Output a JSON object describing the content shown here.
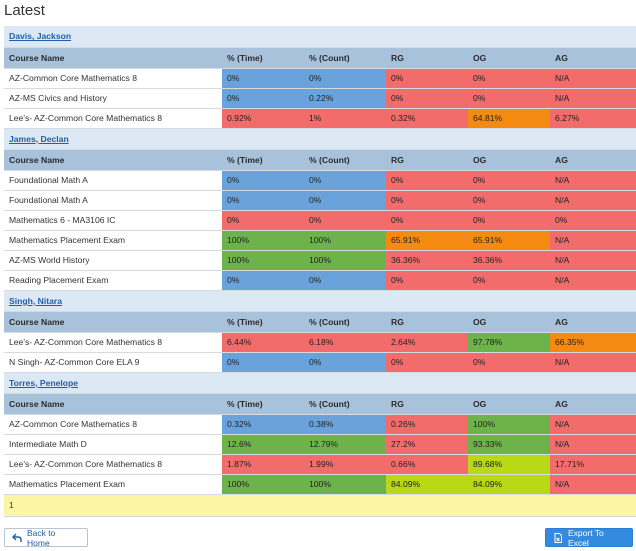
{
  "page": {
    "title": "Latest"
  },
  "columns": [
    "Course Name",
    "% (Time)",
    "% (Count)",
    "RG",
    "OG",
    "AG"
  ],
  "colors": {
    "blue": "#6aa3dc",
    "red": "#f36c6c",
    "green": "#6db24a",
    "orange": "#f48a12",
    "lime": "#b9d815"
  },
  "students": [
    {
      "name": "Davis, Jackson",
      "rows": [
        {
          "course": "AZ-Common Core Mathematics 8",
          "cells": [
            {
              "v": "0%",
              "c": "blue"
            },
            {
              "v": "0%",
              "c": "blue"
            },
            {
              "v": "0%",
              "c": "red"
            },
            {
              "v": "0%",
              "c": "red"
            },
            {
              "v": "N/A",
              "c": "red"
            }
          ]
        },
        {
          "course": "AZ-MS Civics and History",
          "cells": [
            {
              "v": "0%",
              "c": "blue"
            },
            {
              "v": "0.22%",
              "c": "blue"
            },
            {
              "v": "0%",
              "c": "red"
            },
            {
              "v": "0%",
              "c": "red"
            },
            {
              "v": "N/A",
              "c": "red"
            }
          ]
        },
        {
          "course": "Lee's- AZ-Common Core Mathematics 8",
          "cells": [
            {
              "v": "0.92%",
              "c": "red"
            },
            {
              "v": "1%",
              "c": "red"
            },
            {
              "v": "0.32%",
              "c": "red"
            },
            {
              "v": "64.81%",
              "c": "orange"
            },
            {
              "v": "6.27%",
              "c": "red"
            }
          ]
        }
      ]
    },
    {
      "name": "James, Declan",
      "rows": [
        {
          "course": "Foundational Math A",
          "cells": [
            {
              "v": "0%",
              "c": "blue"
            },
            {
              "v": "0%",
              "c": "blue"
            },
            {
              "v": "0%",
              "c": "red"
            },
            {
              "v": "0%",
              "c": "red"
            },
            {
              "v": "N/A",
              "c": "red"
            }
          ]
        },
        {
          "course": "Foundational Math A",
          "cells": [
            {
              "v": "0%",
              "c": "blue"
            },
            {
              "v": "0%",
              "c": "blue"
            },
            {
              "v": "0%",
              "c": "red"
            },
            {
              "v": "0%",
              "c": "red"
            },
            {
              "v": "N/A",
              "c": "red"
            }
          ]
        },
        {
          "course": "Mathematics 6 - MA3106 IC",
          "cells": [
            {
              "v": "0%",
              "c": "red"
            },
            {
              "v": "0%",
              "c": "red"
            },
            {
              "v": "0%",
              "c": "red"
            },
            {
              "v": "0%",
              "c": "red"
            },
            {
              "v": "0%",
              "c": "red"
            }
          ]
        },
        {
          "course": "Mathematics Placement Exam",
          "cells": [
            {
              "v": "100%",
              "c": "green"
            },
            {
              "v": "100%",
              "c": "green"
            },
            {
              "v": "65.91%",
              "c": "orange"
            },
            {
              "v": "65.91%",
              "c": "orange"
            },
            {
              "v": "N/A",
              "c": "red"
            }
          ]
        },
        {
          "course": "AZ-MS World History",
          "cells": [
            {
              "v": "100%",
              "c": "green"
            },
            {
              "v": "100%",
              "c": "green"
            },
            {
              "v": "36.36%",
              "c": "red"
            },
            {
              "v": "36.36%",
              "c": "red"
            },
            {
              "v": "N/A",
              "c": "red"
            }
          ]
        },
        {
          "course": "Reading Placement Exam",
          "cells": [
            {
              "v": "0%",
              "c": "blue"
            },
            {
              "v": "0%",
              "c": "blue"
            },
            {
              "v": "0%",
              "c": "red"
            },
            {
              "v": "0%",
              "c": "red"
            },
            {
              "v": "N/A",
              "c": "red"
            }
          ]
        }
      ]
    },
    {
      "name": "Singh, Nitara",
      "rows": [
        {
          "course": "Lee's- AZ-Common Core Mathematics 8",
          "cells": [
            {
              "v": "6.44%",
              "c": "red"
            },
            {
              "v": "6.18%",
              "c": "red"
            },
            {
              "v": "2.64%",
              "c": "red"
            },
            {
              "v": "97.78%",
              "c": "green"
            },
            {
              "v": "66.35%",
              "c": "orange"
            }
          ]
        },
        {
          "course": "N Singh- AZ-Common Core ELA 9",
          "cells": [
            {
              "v": "0%",
              "c": "blue"
            },
            {
              "v": "0%",
              "c": "blue"
            },
            {
              "v": "0%",
              "c": "red"
            },
            {
              "v": "0%",
              "c": "red"
            },
            {
              "v": "N/A",
              "c": "red"
            }
          ]
        }
      ]
    },
    {
      "name": "Torres, Penelope",
      "rows": [
        {
          "course": "AZ-Common Core Mathematics 8",
          "cells": [
            {
              "v": "0.32%",
              "c": "blue"
            },
            {
              "v": "0.38%",
              "c": "blue"
            },
            {
              "v": "0.26%",
              "c": "red"
            },
            {
              "v": "100%",
              "c": "green"
            },
            {
              "v": "N/A",
              "c": "red"
            }
          ]
        },
        {
          "course": "Intermediate Math D",
          "cells": [
            {
              "v": "12.6%",
              "c": "green"
            },
            {
              "v": "12.79%",
              "c": "green"
            },
            {
              "v": "27.2%",
              "c": "red"
            },
            {
              "v": "93.33%",
              "c": "green"
            },
            {
              "v": "N/A",
              "c": "red"
            }
          ]
        },
        {
          "course": "Lee's- AZ-Common Core Mathematics 8",
          "cells": [
            {
              "v": "1.87%",
              "c": "red"
            },
            {
              "v": "1.99%",
              "c": "red"
            },
            {
              "v": "0.66%",
              "c": "red"
            },
            {
              "v": "89.68%",
              "c": "lime"
            },
            {
              "v": "17.71%",
              "c": "red"
            }
          ]
        },
        {
          "course": "Mathematics Placement Exam",
          "cells": [
            {
              "v": "100%",
              "c": "green"
            },
            {
              "v": "100%",
              "c": "green"
            },
            {
              "v": "84.09%",
              "c": "lime"
            },
            {
              "v": "84.09%",
              "c": "lime"
            },
            {
              "v": "N/A",
              "c": "red"
            }
          ]
        }
      ]
    }
  ],
  "footer": {
    "page_number": "1"
  },
  "buttons": {
    "back_label": "Back to Home",
    "export_label": "Export To Excel"
  },
  "icons": {
    "back": "back-arrow-icon",
    "export": "excel-file-icon"
  }
}
